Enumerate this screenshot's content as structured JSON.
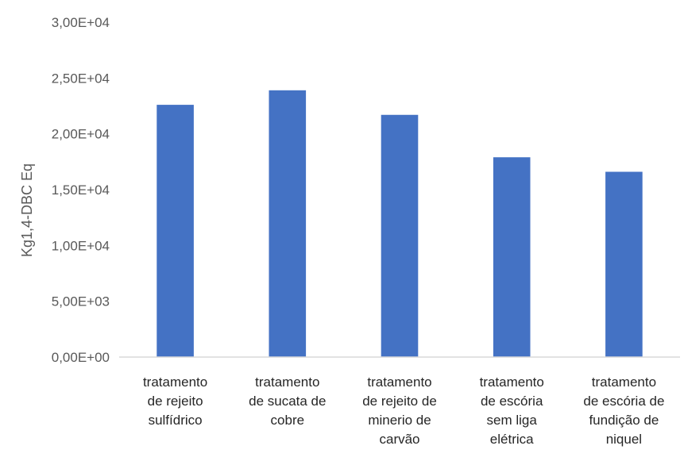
{
  "chart_data": {
    "type": "bar",
    "title": "",
    "xlabel": "",
    "ylabel": "Kg1,4-DBC Eq",
    "ylim": [
      0,
      30000
    ],
    "grid": false,
    "yticks": [
      "0,00E+00",
      "5,00E+03",
      "1,00E+04",
      "1,50E+04",
      "2,00E+04",
      "2,50E+04",
      "3,00E+04"
    ],
    "categories": [
      [
        "tratamento",
        "de rejeito",
        "sulfídrico"
      ],
      [
        "tratamento",
        "de sucata de",
        "cobre"
      ],
      [
        "tratamento",
        "de rejeito de",
        "minerio de",
        "carvão"
      ],
      [
        "tratamento",
        "de escória",
        "sem liga",
        "elétrica"
      ],
      [
        "tratamento",
        "de escória de",
        "fundição de",
        "niquel"
      ]
    ],
    "values": [
      22600,
      23900,
      21700,
      17900,
      16600
    ],
    "bar_color": "#4472C4",
    "axis_color": "#D9D9D9"
  }
}
